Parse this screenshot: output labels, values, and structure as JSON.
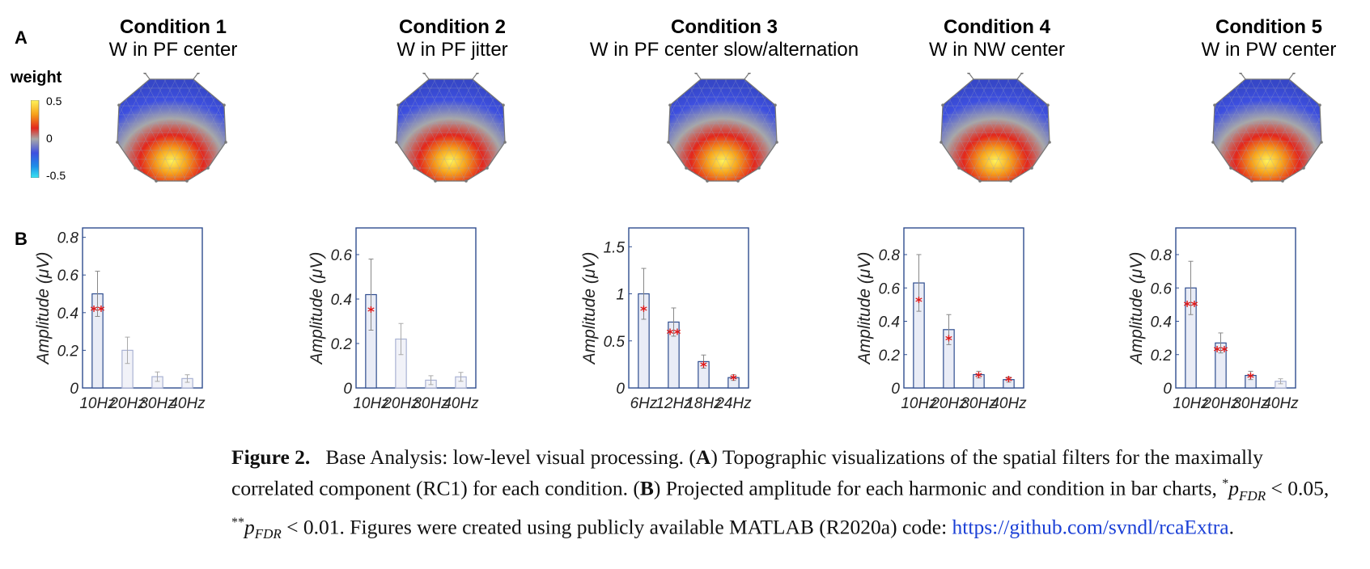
{
  "panel_labels": {
    "a": "A",
    "b": "B"
  },
  "colorbar": {
    "title": "weight",
    "ticks": [
      "0.5",
      "0",
      "-0.5"
    ],
    "colors": [
      "#fff45a",
      "#f7a21b",
      "#e3271c",
      "#a8a8a8",
      "#3d4fe0",
      "#1f8de8",
      "#38e6f2"
    ]
  },
  "conditions": [
    {
      "title": "Condition 1",
      "subtitle": "W in PF center"
    },
    {
      "title": "Condition 2",
      "subtitle": "W in PF jitter"
    },
    {
      "title": "Condition 3",
      "subtitle": "W in PF center slow/alternation"
    },
    {
      "title": "Condition 4",
      "subtitle": "W in NW center"
    },
    {
      "title": "Condition 5",
      "subtitle": "W in PW center"
    }
  ],
  "chart_data": [
    {
      "type": "bar",
      "ylabel": "Amplitude (μV)",
      "categories": [
        "10Hz",
        "20Hz",
        "30Hz",
        "40Hz"
      ],
      "values": [
        0.5,
        0.2,
        0.06,
        0.05
      ],
      "errors": [
        0.12,
        0.07,
        0.025,
        0.02
      ],
      "significance": [
        "**",
        "",
        "",
        ""
      ],
      "ylim": [
        0,
        0.85
      ],
      "yticks": [
        0,
        0.2,
        0.4,
        0.6,
        0.8
      ],
      "ytick_labels": [
        "0",
        "0.2",
        "0.4",
        "0.6",
        "0.8"
      ]
    },
    {
      "type": "bar",
      "ylabel": "Amplitude (μV)",
      "categories": [
        "10Hz",
        "20Hz",
        "30Hz",
        "40Hz"
      ],
      "values": [
        0.42,
        0.22,
        0.035,
        0.05
      ],
      "errors": [
        0.16,
        0.07,
        0.02,
        0.02
      ],
      "significance": [
        "*",
        "",
        "",
        ""
      ],
      "ylim": [
        0,
        0.72
      ],
      "yticks": [
        0,
        0.2,
        0.4,
        0.6
      ],
      "ytick_labels": [
        "0",
        "0.2",
        "0.4",
        "0.6"
      ]
    },
    {
      "type": "bar",
      "ylabel": "Amplitude (μV)",
      "categories": [
        "6Hz",
        "12Hz",
        "18Hz",
        "24Hz"
      ],
      "values": [
        1.0,
        0.7,
        0.28,
        0.11
      ],
      "errors": [
        0.27,
        0.15,
        0.07,
        0.03
      ],
      "significance": [
        "*",
        "**",
        "*",
        "*"
      ],
      "ylim": [
        0,
        1.7
      ],
      "yticks": [
        0,
        0.5,
        1,
        1.5
      ],
      "ytick_labels": [
        "0",
        "0.5",
        "1",
        "1.5"
      ]
    },
    {
      "type": "bar",
      "ylabel": "Amplitude (μV)",
      "categories": [
        "10Hz",
        "20Hz",
        "30Hz",
        "40Hz"
      ],
      "values": [
        0.63,
        0.35,
        0.08,
        0.05
      ],
      "errors": [
        0.17,
        0.09,
        0.02,
        0.015
      ],
      "significance": [
        "*",
        "*",
        "*",
        "*"
      ],
      "ylim": [
        0,
        0.96
      ],
      "yticks": [
        0,
        0.2,
        0.4,
        0.6,
        0.8
      ],
      "ytick_labels": [
        "0",
        "0.2",
        "0.4",
        "0.6",
        "0.8"
      ]
    },
    {
      "type": "bar",
      "ylabel": "Amplitude (μV)",
      "categories": [
        "10Hz",
        "20Hz",
        "30Hz",
        "40Hz"
      ],
      "values": [
        0.6,
        0.27,
        0.075,
        0.04
      ],
      "errors": [
        0.16,
        0.06,
        0.025,
        0.015
      ],
      "significance": [
        "**",
        "**",
        "*",
        ""
      ],
      "ylim": [
        0,
        0.96
      ],
      "yticks": [
        0,
        0.2,
        0.4,
        0.6,
        0.8
      ],
      "ytick_labels": [
        "0",
        "0.2",
        "0.4",
        "0.6",
        "0.8"
      ]
    }
  ],
  "caption": {
    "figure_label": "Figure 2.",
    "part1": "Base Analysis: low-level visual processing. (",
    "label_a": "A",
    "part2": ") Topographic visualizations of the spatial filters for the maximally correlated component (RC1) for each condition. (",
    "label_b": "B",
    "part3": ") Projected amplitude for each harmonic and condition in bar charts, ",
    "star1": "*",
    "p1": "p",
    "sub1": "FDR",
    "cmp1": " < 0.05, ",
    "star2": "**",
    "p2": "p",
    "sub2": "FDR",
    "cmp2": " < 0.01. Figures were created using publicly available MATLAB (R2020a) code: ",
    "link": "https://github.com/svndl/rcaExtra",
    "end": "."
  }
}
